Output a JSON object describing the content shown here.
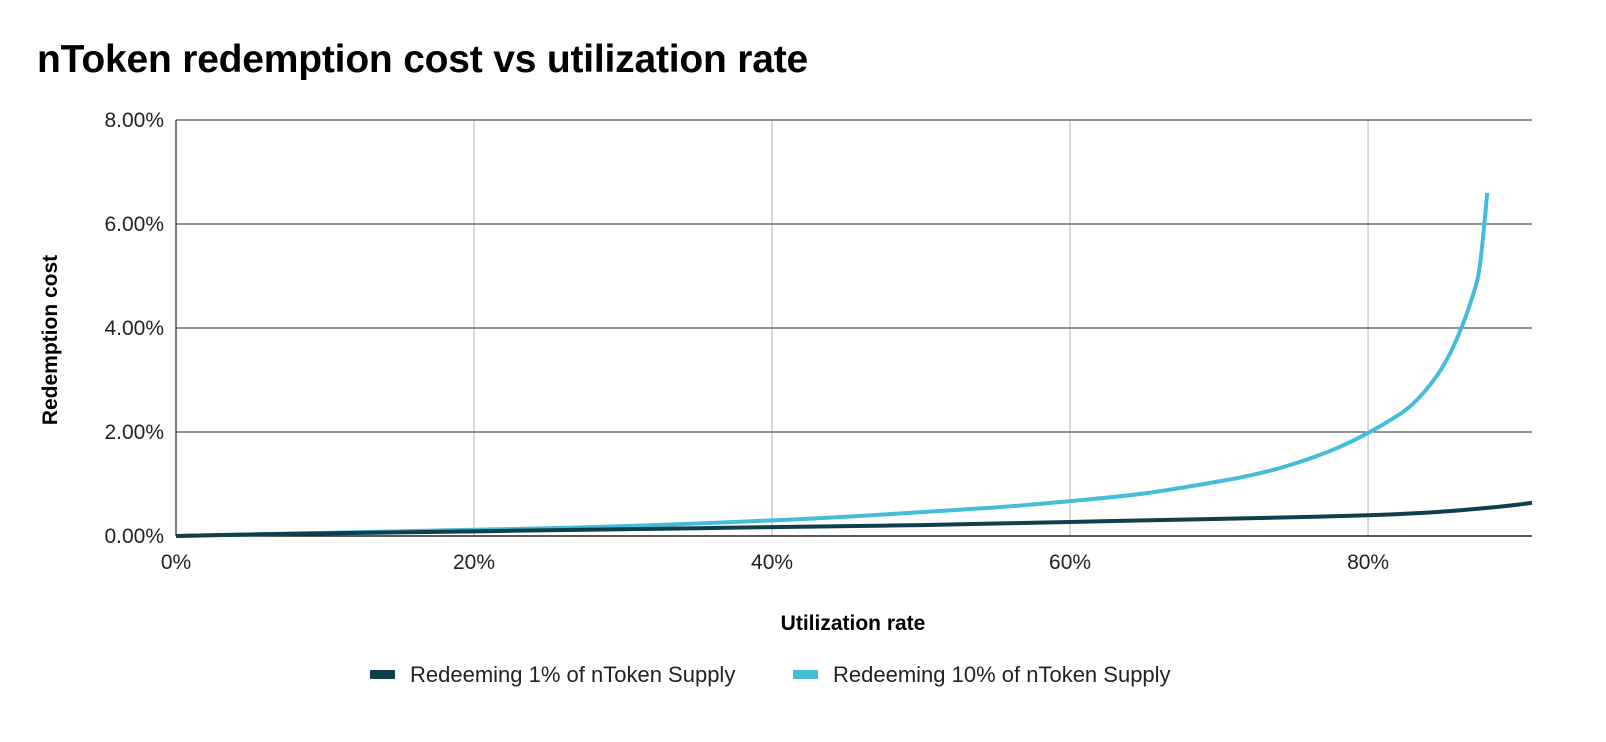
{
  "chart_data": {
    "type": "line",
    "title": "nToken redemption cost vs utilization rate",
    "xlabel": "Utilization rate",
    "ylabel": "Redemption cost",
    "xlim": [
      0,
      0.91
    ],
    "ylim": [
      0,
      0.08
    ],
    "x_ticks": [
      0,
      0.2,
      0.4,
      0.6,
      0.8
    ],
    "x_tick_labels": [
      "0%",
      "20%",
      "40%",
      "60%",
      "80%"
    ],
    "y_ticks": [
      0,
      0.02,
      0.04,
      0.06,
      0.08
    ],
    "y_tick_labels": [
      "0.00%",
      "2.00%",
      "4.00%",
      "6.00%",
      "8.00%"
    ],
    "grid": {
      "x": true,
      "y": true
    },
    "legend_position": "bottom",
    "series": [
      {
        "name": "Redeeming 1% of nToken Supply",
        "color": "#0d3f4c",
        "x": [
          0,
          0.05,
          0.1,
          0.15,
          0.2,
          0.25,
          0.3,
          0.35,
          0.4,
          0.45,
          0.5,
          0.55,
          0.6,
          0.65,
          0.7,
          0.75,
          0.8,
          0.82,
          0.84,
          0.86,
          0.88,
          0.9,
          0.91
        ],
        "y": [
          0,
          0.0003,
          0.0005,
          0.0007,
          0.0009,
          0.0011,
          0.0013,
          0.0015,
          0.0017,
          0.0019,
          0.0021,
          0.0024,
          0.0027,
          0.003,
          0.0033,
          0.0036,
          0.004,
          0.0042,
          0.0045,
          0.0049,
          0.0054,
          0.006,
          0.0064
        ]
      },
      {
        "name": "Redeeming 10% of nToken Supply",
        "color": "#45bcd8",
        "x": [
          0,
          0.05,
          0.1,
          0.15,
          0.2,
          0.25,
          0.3,
          0.35,
          0.4,
          0.45,
          0.5,
          0.55,
          0.6,
          0.65,
          0.7,
          0.72,
          0.74,
          0.76,
          0.78,
          0.8,
          0.82,
          0.83,
          0.84,
          0.85,
          0.86,
          0.87,
          0.875,
          0.88
        ],
        "y": [
          0,
          0.0003,
          0.0006,
          0.0009,
          0.0012,
          0.0015,
          0.0019,
          0.0024,
          0.003,
          0.0037,
          0.0046,
          0.0055,
          0.0067,
          0.0082,
          0.0105,
          0.0116,
          0.013,
          0.0148,
          0.017,
          0.0198,
          0.0232,
          0.0254,
          0.0285,
          0.0325,
          0.0382,
          0.046,
          0.052,
          0.066
        ]
      }
    ]
  }
}
